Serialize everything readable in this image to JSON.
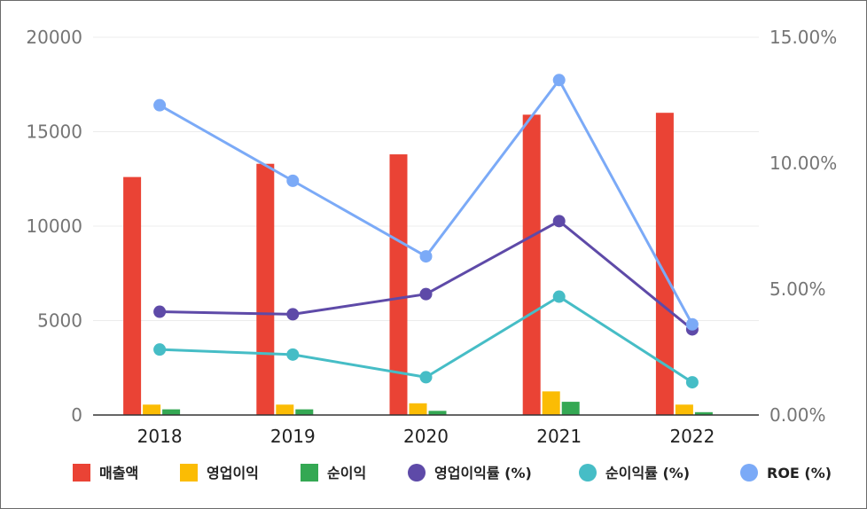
{
  "chart_data": {
    "type": "bar+line",
    "categories": [
      "2018",
      "2019",
      "2020",
      "2021",
      "2022"
    ],
    "y_left": {
      "ticks": [
        "0",
        "5000",
        "10000",
        "15000",
        "20000"
      ],
      "range": [
        0,
        20000
      ]
    },
    "y_right": {
      "ticks": [
        "0.00%",
        "5.00%",
        "10.00%",
        "15.00%"
      ],
      "range": [
        0,
        15
      ]
    },
    "bar_series": [
      {
        "name": "매출액",
        "color": "#ea4335",
        "values": [
          12600,
          13300,
          13800,
          15900,
          16000
        ]
      },
      {
        "name": "영업이익",
        "color": "#fbbc04",
        "values": [
          550,
          550,
          620,
          1250,
          550
        ]
      },
      {
        "name": "순이익",
        "color": "#34a853",
        "values": [
          300,
          300,
          220,
          700,
          150
        ]
      }
    ],
    "line_series": [
      {
        "name": "영업이익률 (%)",
        "color": "#5e4aa8",
        "values": [
          4.1,
          4.0,
          4.8,
          7.7,
          3.4
        ]
      },
      {
        "name": "순이익률 (%)",
        "color": "#46bdc6",
        "values": [
          2.6,
          2.4,
          1.5,
          4.7,
          1.3
        ]
      },
      {
        "name": "ROE (%)",
        "color": "#7baaf7",
        "values": [
          12.3,
          9.3,
          6.3,
          13.3,
          3.6
        ]
      }
    ],
    "grid": true,
    "legend_position": "bottom"
  }
}
